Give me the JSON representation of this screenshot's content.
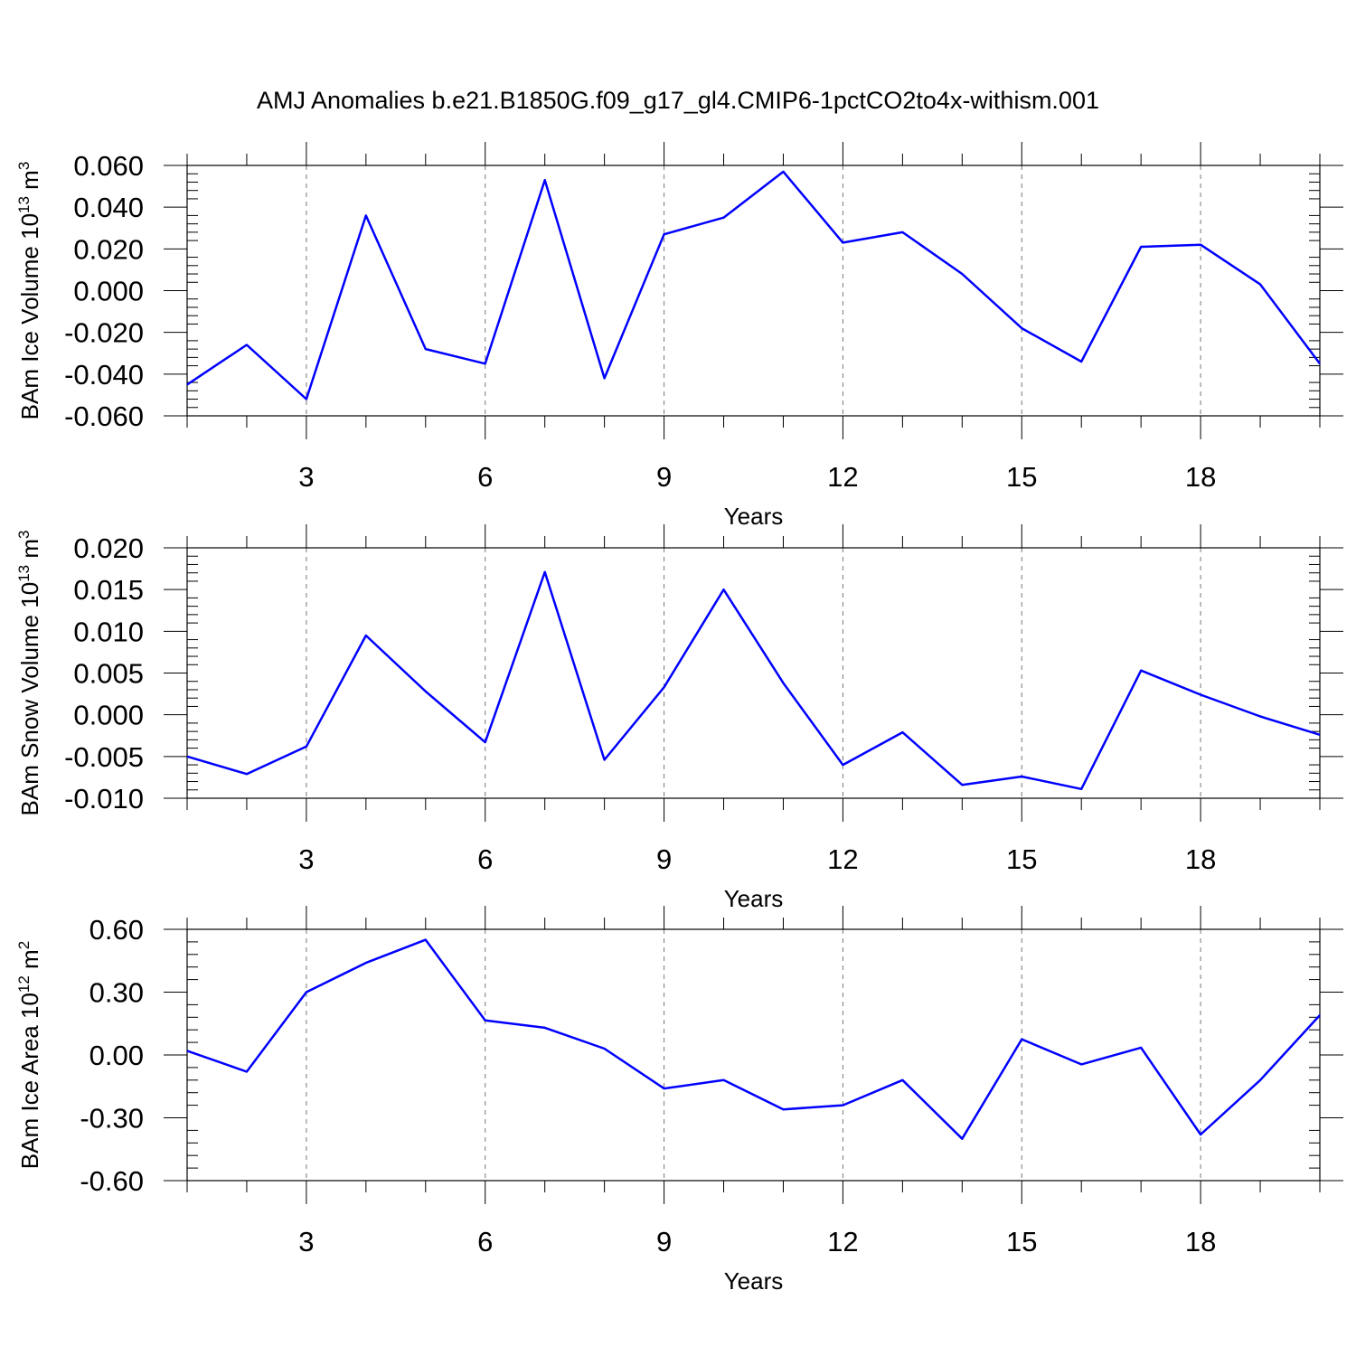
{
  "figure": {
    "title": "AMJ Anomalies b.e21.B1850G.f09_g17_gl4.CMIP6-1pctCO2to4x-withism.001"
  },
  "colors": {
    "line": "#0000ff",
    "grid": "#777777",
    "frame": "#000000"
  },
  "chart_data": [
    {
      "type": "line",
      "xlabel": "Years",
      "ylabel": "BAm Ice Volume 10",
      "ylabel_exponent": "13",
      "ylabel_unit": "m",
      "ylabel_unit_exponent": "3",
      "xlim": [
        1,
        20
      ],
      "ylim": [
        -0.06,
        0.06
      ],
      "x_ticks": [
        3,
        6,
        9,
        12,
        15,
        18
      ],
      "x_tick_labels": [
        "3",
        "6",
        "9",
        "12",
        "15",
        "18"
      ],
      "y_ticks": [
        -0.06,
        -0.04,
        -0.02,
        0.0,
        0.02,
        0.04,
        0.06
      ],
      "y_tick_labels": [
        "-0.060",
        "-0.040",
        "-0.020",
        "0.000",
        "0.020",
        "0.040",
        "0.060"
      ],
      "grid": "vertical dashed at labeled x ticks",
      "series": [
        {
          "x": [
            1,
            2,
            3,
            4,
            5,
            6,
            7,
            8,
            9,
            10,
            11,
            12,
            13,
            14,
            15,
            16,
            17,
            18,
            19,
            20
          ],
          "values": [
            -0.045,
            -0.026,
            -0.052,
            0.036,
            -0.028,
            -0.035,
            0.053,
            -0.042,
            0.027,
            0.035,
            0.057,
            0.023,
            0.028,
            0.008,
            -0.018,
            -0.034,
            0.021,
            0.022,
            0.003,
            -0.035
          ]
        }
      ]
    },
    {
      "type": "line",
      "xlabel": "Years",
      "ylabel": "BAm Snow Volume 10",
      "ylabel_exponent": "13",
      "ylabel_unit": "m",
      "ylabel_unit_exponent": "3",
      "xlim": [
        1,
        20
      ],
      "ylim": [
        -0.01,
        0.02
      ],
      "x_ticks": [
        3,
        6,
        9,
        12,
        15,
        18
      ],
      "x_tick_labels": [
        "3",
        "6",
        "9",
        "12",
        "15",
        "18"
      ],
      "y_ticks": [
        -0.01,
        -0.005,
        0.0,
        0.005,
        0.01,
        0.015,
        0.02
      ],
      "y_tick_labels": [
        "-0.010",
        "-0.005",
        "0.000",
        "0.005",
        "0.010",
        "0.015",
        "0.020"
      ],
      "grid": "vertical dashed at labeled x ticks",
      "series": [
        {
          "x": [
            1,
            2,
            3,
            4,
            5,
            6,
            7,
            8,
            9,
            10,
            11,
            12,
            13,
            14,
            15,
            16,
            17,
            18,
            19,
            20
          ],
          "values": [
            -0.005,
            -0.0071,
            -0.0038,
            0.0095,
            0.0028,
            -0.0033,
            0.0171,
            -0.0054,
            0.0033,
            0.015,
            0.0038,
            -0.006,
            -0.0021,
            -0.0084,
            -0.0074,
            -0.0089,
            0.0053,
            0.0024,
            -0.0002,
            -0.0024
          ]
        }
      ]
    },
    {
      "type": "line",
      "xlabel": "Years",
      "ylabel": "BAm Ice Area 10",
      "ylabel_exponent": "12",
      "ylabel_unit": "m",
      "ylabel_unit_exponent": "2",
      "xlim": [
        1,
        20
      ],
      "ylim": [
        -0.6,
        0.6
      ],
      "x_ticks": [
        3,
        6,
        9,
        12,
        15,
        18
      ],
      "x_tick_labels": [
        "3",
        "6",
        "9",
        "12",
        "15",
        "18"
      ],
      "y_ticks": [
        -0.6,
        -0.3,
        0.0,
        0.3,
        0.6
      ],
      "y_tick_labels": [
        "-0.60",
        "-0.30",
        "0.00",
        "0.30",
        "0.60"
      ],
      "grid": "vertical dashed at labeled x ticks",
      "series": [
        {
          "x": [
            1,
            2,
            3,
            4,
            5,
            6,
            7,
            8,
            9,
            10,
            11,
            12,
            13,
            14,
            15,
            16,
            17,
            18,
            19,
            20
          ],
          "values": [
            0.02,
            -0.08,
            0.3,
            0.44,
            0.55,
            0.165,
            0.13,
            0.03,
            -0.16,
            -0.12,
            -0.26,
            -0.24,
            -0.12,
            -0.4,
            0.075,
            -0.045,
            0.035,
            -0.38,
            -0.12,
            0.19
          ]
        }
      ]
    }
  ]
}
